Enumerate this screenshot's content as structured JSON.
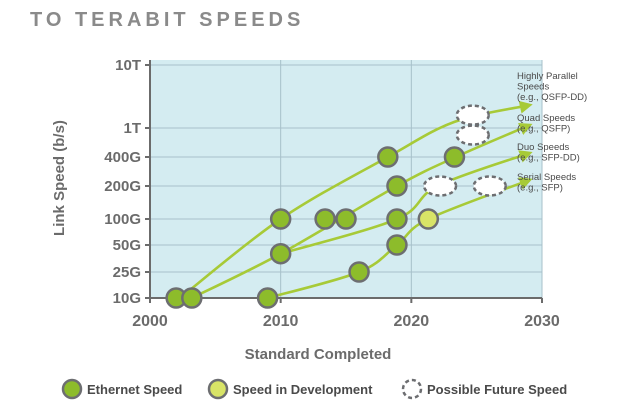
{
  "chart_data": {
    "type": "scatter",
    "title": "TO TERABIT SPEEDS",
    "xlabel": "Standard Completed",
    "ylabel": "Link Speed (b/s)",
    "xlim": [
      2000,
      2030
    ],
    "xticks": [
      2000,
      2010,
      2020,
      2030
    ],
    "yscale": "log",
    "yticks": [
      {
        "label": "10G",
        "value": 10
      },
      {
        "label": "25G",
        "value": 25
      },
      {
        "label": "50G",
        "value": 50
      },
      {
        "label": "100G",
        "value": 100
      },
      {
        "label": "200G",
        "value": 200
      },
      {
        "label": "400G",
        "value": 400
      },
      {
        "label": "1T",
        "value": 1000
      },
      {
        "label": "10T",
        "value": 10000
      }
    ],
    "colors": {
      "plot_bg": "#d4ecf1",
      "grid": "#a7c0ca",
      "ethernet": "#8dbc2b",
      "development": "#d8e467",
      "marker_stroke": "#6d6e71",
      "arrow": "#a7ca37",
      "text": "#6b6b6b"
    },
    "series": [
      {
        "name": "Highly Parallel Speeds (e.g., QSFP-DD)",
        "label_lines": [
          "Highly Parallel",
          "Speeds",
          "(e.g., QSFP-DD)"
        ],
        "trend": [
          [
            2002.3,
            10
          ],
          [
            2010,
            100
          ],
          [
            2018.2,
            400
          ],
          [
            2023.3,
            1250
          ],
          [
            2029,
            2300
          ]
        ]
      },
      {
        "name": "Quad Speeds (e.g., QSFP)",
        "label_lines": [
          "Quad Speeds",
          "(e.g., QSFP)"
        ],
        "trend": [
          [
            2003.2,
            10
          ],
          [
            2010,
            40
          ],
          [
            2018.9,
            200
          ],
          [
            2023.4,
            400
          ],
          [
            2029,
            1100
          ]
        ]
      },
      {
        "name": "Duo Speeds (e.g., SFP-DD)",
        "label_lines": [
          "Duo Speeds",
          "(e.g., SFP-DD)"
        ],
        "trend": [
          [
            2010,
            40
          ],
          [
            2018.9,
            100
          ],
          [
            2022,
            200
          ],
          [
            2029,
            450
          ]
        ]
      },
      {
        "name": "Serial Speeds (e.g., SFP)",
        "label_lines": [
          "Serial Speeds",
          "(e.g., SFP)"
        ],
        "trend": [
          [
            2009,
            10
          ],
          [
            2016,
            25
          ],
          [
            2018.9,
            50
          ],
          [
            2021.3,
            100
          ],
          [
            2029,
            230
          ]
        ]
      }
    ],
    "points": [
      {
        "year": 2002,
        "speed": 10,
        "status": "ethernet"
      },
      {
        "year": 2003.2,
        "speed": 10,
        "status": "ethernet"
      },
      {
        "year": 2009,
        "speed": 10,
        "status": "ethernet"
      },
      {
        "year": 2010,
        "speed": 40,
        "status": "ethernet"
      },
      {
        "year": 2010,
        "speed": 100,
        "status": "ethernet"
      },
      {
        "year": 2013.4,
        "speed": 100,
        "status": "ethernet"
      },
      {
        "year": 2015,
        "speed": 100,
        "status": "ethernet"
      },
      {
        "year": 2016,
        "speed": 25,
        "status": "ethernet"
      },
      {
        "year": 2018.2,
        "speed": 400,
        "status": "ethernet"
      },
      {
        "year": 2018.9,
        "speed": 200,
        "status": "ethernet"
      },
      {
        "year": 2018.9,
        "speed": 100,
        "status": "ethernet"
      },
      {
        "year": 2018.9,
        "speed": 50,
        "status": "ethernet"
      },
      {
        "year": 2021.3,
        "speed": 100,
        "status": "development"
      },
      {
        "year": 2023.3,
        "speed": 400,
        "status": "ethernet"
      },
      {
        "year": 2022.2,
        "speed": 200,
        "status": "future"
      },
      {
        "year": 2026,
        "speed": 200,
        "status": "future"
      },
      {
        "year": 2024.7,
        "speed": 800,
        "status": "future"
      },
      {
        "year": 2024.7,
        "speed": 1600,
        "status": "future"
      }
    ],
    "legend": [
      {
        "key": "ethernet",
        "label": "Ethernet Speed"
      },
      {
        "key": "development",
        "label": "Speed in Development"
      },
      {
        "key": "future",
        "label": "Possible Future Speed"
      }
    ]
  }
}
